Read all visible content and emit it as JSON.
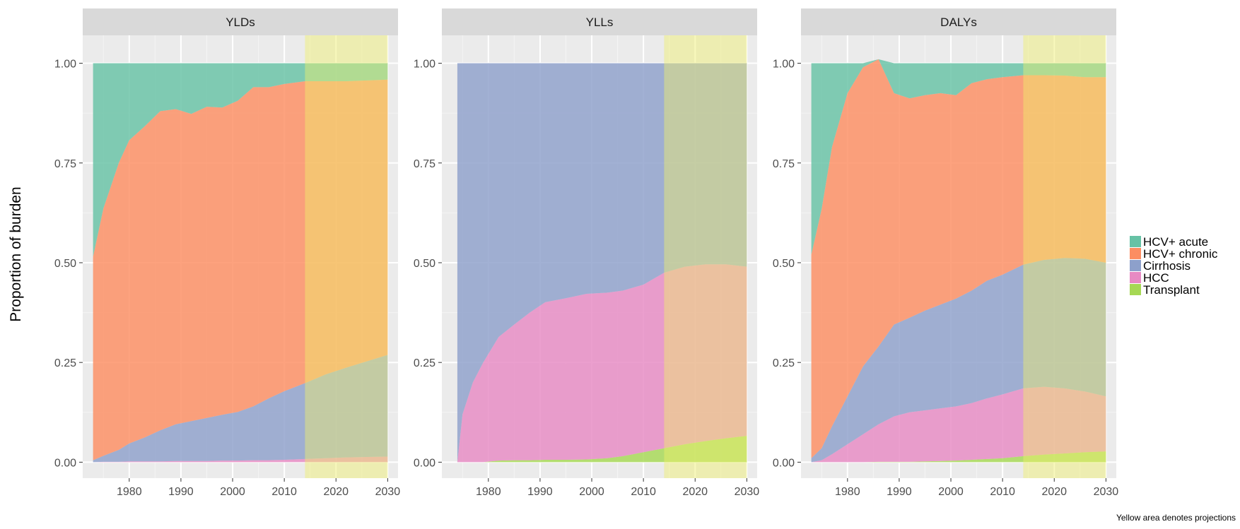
{
  "chart_data": {
    "type": "area",
    "stacking": "proportion",
    "ylabel": "Proportion of burden",
    "xlabel": "",
    "caption": "Yellow area denotes projections",
    "xlim": [
      1971,
      2032
    ],
    "ylim": [
      -0.04,
      1.07
    ],
    "x_ticks": [
      1980,
      1990,
      2000,
      2010,
      2020,
      2030
    ],
    "y_ticks": [
      0.0,
      0.25,
      0.5,
      0.75,
      1.0
    ],
    "y_tick_labels": [
      "0.00",
      "0.25",
      "0.50",
      "0.75",
      "1.00"
    ],
    "projection_range": [
      2014,
      2030
    ],
    "projection_color": "#f0f06a",
    "panel_background": "#ebebeb",
    "grid": true,
    "legend": {
      "position": "right",
      "entries": [
        {
          "name": "HCV+ acute",
          "color": "#66c2a5"
        },
        {
          "name": "HCV+ chronic",
          "color": "#fc8d62"
        },
        {
          "name": "Cirrhosis",
          "color": "#8da0cb"
        },
        {
          "name": "HCC",
          "color": "#e78ac3"
        },
        {
          "name": "Transplant",
          "color": "#a6d854"
        }
      ]
    },
    "panels": [
      {
        "title": "YLDs",
        "x": [
          1973,
          1975,
          1978,
          1980,
          1983,
          1986,
          1989,
          1992,
          1995,
          1998,
          2001,
          2004,
          2007,
          2010,
          2014,
          2018,
          2022,
          2026,
          2030
        ],
        "series": [
          {
            "name": "Transplant",
            "values": [
              0,
              0,
              0,
              0,
              0,
              0,
              0,
              0,
              0,
              0,
              0,
              0,
              0,
              0,
              0,
              0,
              0,
              0,
              0
            ]
          },
          {
            "name": "HCC",
            "values": [
              0,
              0.001,
              0.001,
              0.002,
              0.002,
              0.002,
              0.003,
              0.003,
              0.003,
              0.004,
              0.004,
              0.005,
              0.005,
              0.006,
              0.008,
              0.01,
              0.012,
              0.013,
              0.014
            ]
          },
          {
            "name": "Cirrhosis",
            "values": [
              0.005,
              0.015,
              0.03,
              0.045,
              0.06,
              0.078,
              0.092,
              0.1,
              0.108,
              0.115,
              0.122,
              0.135,
              0.155,
              0.172,
              0.19,
              0.21,
              0.225,
              0.24,
              0.255
            ]
          },
          {
            "name": "HCV+ chronic",
            "values": [
              0.51,
              0.62,
              0.72,
              0.76,
              0.78,
              0.8,
              0.79,
              0.77,
              0.78,
              0.77,
              0.78,
              0.8,
              0.78,
              0.77,
              0.757,
              0.735,
              0.718,
              0.704,
              0.69
            ]
          },
          {
            "name": "HCV+ acute",
            "values": [
              0.485,
              0.364,
              0.249,
              0.193,
              0.158,
              0.12,
              0.115,
              0.127,
              0.109,
              0.111,
              0.094,
              0.06,
              0.06,
              0.052,
              0.045,
              0.045,
              0.045,
              0.043,
              0.041
            ]
          }
        ]
      },
      {
        "title": "YLLs",
        "x": [
          1974,
          1975,
          1977,
          1979,
          1982,
          1985,
          1988,
          1991,
          1995,
          1999,
          2003,
          2006,
          2010,
          2014,
          2018,
          2022,
          2026,
          2030
        ],
        "series": [
          {
            "name": "Transplant",
            "values": [
              0,
              0,
              0,
              0,
              0.004,
              0.005,
              0.005,
              0.006,
              0.006,
              0.007,
              0.01,
              0.015,
              0.025,
              0.035,
              0.045,
              0.053,
              0.06,
              0.066
            ]
          },
          {
            "name": "HCC",
            "values": [
              0,
              0.12,
              0.2,
              0.25,
              0.31,
              0.34,
              0.37,
              0.395,
              0.405,
              0.415,
              0.415,
              0.415,
              0.42,
              0.44,
              0.445,
              0.443,
              0.436,
              0.424
            ]
          },
          {
            "name": "Cirrhosis",
            "values": [
              1,
              0.88,
              0.8,
              0.75,
              0.686,
              0.655,
              0.625,
              0.599,
              0.589,
              0.578,
              0.575,
              0.57,
              0.555,
              0.525,
              0.51,
              0.504,
              0.504,
              0.51
            ]
          },
          {
            "name": "HCV+ chronic",
            "values": [
              0,
              0,
              0,
              0,
              0,
              0,
              0,
              0,
              0,
              0,
              0,
              0,
              0,
              0,
              0,
              0,
              0,
              0
            ]
          },
          {
            "name": "HCV+ acute",
            "values": [
              0,
              0,
              0,
              0,
              0,
              0,
              0,
              0,
              0,
              0,
              0,
              0,
              0,
              0,
              0,
              0,
              0,
              0
            ]
          }
        ]
      },
      {
        "title": "DALYs",
        "x": [
          1973,
          1975,
          1977,
          1980,
          1983,
          1986,
          1989,
          1992,
          1995,
          1998,
          2001,
          2004,
          2007,
          2010,
          2014,
          2018,
          2022,
          2026,
          2030
        ],
        "series": [
          {
            "name": "Transplant",
            "values": [
              0,
              0,
              0,
              0,
              0,
              0.001,
              0.001,
              0.001,
              0.002,
              0.003,
              0.004,
              0.006,
              0.008,
              0.01,
              0.015,
              0.019,
              0.022,
              0.025,
              0.027
            ]
          },
          {
            "name": "HCC",
            "values": [
              0,
              0.005,
              0.02,
              0.045,
              0.07,
              0.094,
              0.114,
              0.124,
              0.128,
              0.132,
              0.136,
              0.142,
              0.152,
              0.16,
              0.17,
              0.17,
              0.163,
              0.152,
              0.138
            ]
          },
          {
            "name": "Cirrhosis",
            "values": [
              0.01,
              0.03,
              0.07,
              0.12,
              0.17,
              0.195,
              0.23,
              0.237,
              0.25,
              0.26,
              0.27,
              0.282,
              0.295,
              0.3,
              0.31,
              0.318,
              0.327,
              0.333,
              0.335
            ]
          },
          {
            "name": "HCV+ chronic",
            "values": [
              0.51,
              0.6,
              0.7,
              0.76,
              0.75,
              0.72,
              0.58,
              0.55,
              0.54,
              0.53,
              0.51,
              0.52,
              0.505,
              0.495,
              0.475,
              0.463,
              0.457,
              0.455,
              0.465
            ]
          },
          {
            "name": "HCV+ acute",
            "values": [
              0.48,
              0.365,
              0.21,
              0.075,
              0.01,
              0,
              0.075,
              0.088,
              0.08,
              0.075,
              0.08,
              0.05,
              0.04,
              0.035,
              0.03,
              0.03,
              0.031,
              0.035,
              0.035
            ]
          }
        ]
      }
    ]
  }
}
